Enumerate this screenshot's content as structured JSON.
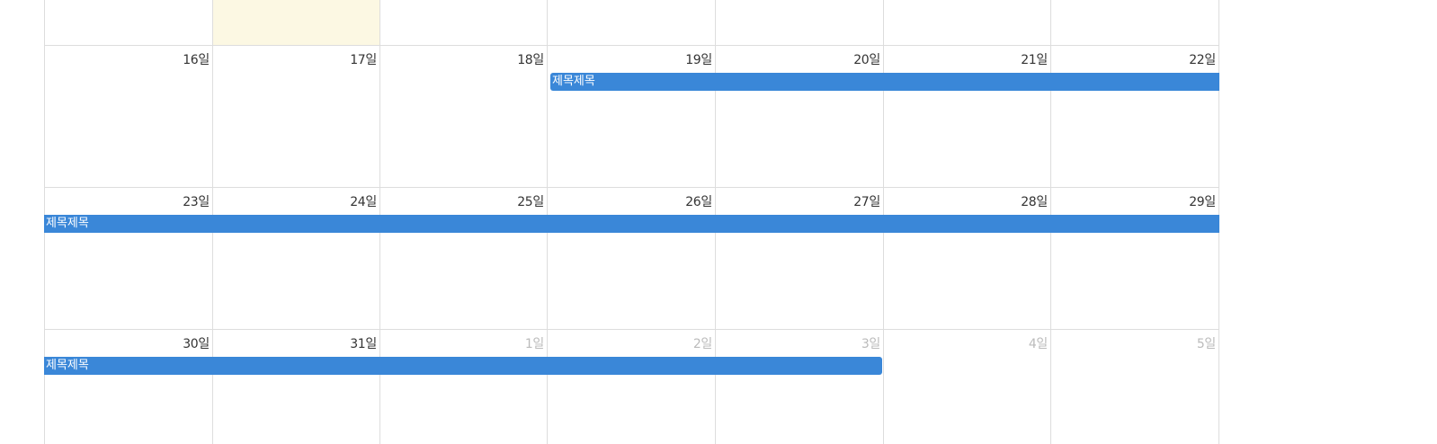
{
  "calendar": {
    "colors": {
      "grid": "#dddddd",
      "today_bg": "#fcf8e3",
      "event_bg": "#3a87d8",
      "other_month_text": "#bbbbbb"
    },
    "weeks": [
      {
        "days": [
          {
            "label": ""
          },
          {
            "label": ""
          },
          {
            "label": ""
          },
          {
            "label": ""
          },
          {
            "label": ""
          },
          {
            "label": ""
          },
          {
            "label": ""
          }
        ]
      },
      {
        "days": [
          {
            "label": "16일"
          },
          {
            "label": "17일"
          },
          {
            "label": "18일"
          },
          {
            "label": "19일"
          },
          {
            "label": "20일"
          },
          {
            "label": "21일"
          },
          {
            "label": "22일"
          }
        ]
      },
      {
        "days": [
          {
            "label": "23일"
          },
          {
            "label": "24일"
          },
          {
            "label": "25일"
          },
          {
            "label": "26일"
          },
          {
            "label": "27일"
          },
          {
            "label": "28일"
          },
          {
            "label": "29일"
          }
        ]
      },
      {
        "days": [
          {
            "label": "30일"
          },
          {
            "label": "31일"
          },
          {
            "label": "1일"
          },
          {
            "label": "2일"
          },
          {
            "label": "3일"
          },
          {
            "label": "4일"
          },
          {
            "label": "5일"
          }
        ]
      }
    ],
    "events": [
      {
        "title": "제목제목",
        "week": 1,
        "start_day": 3,
        "end_day": 6,
        "starts_here": true,
        "ends_here": false
      },
      {
        "title": "제목제목",
        "week": 2,
        "start_day": 0,
        "end_day": 6,
        "starts_here": false,
        "ends_here": false
      },
      {
        "title": "제목제목",
        "week": 3,
        "start_day": 0,
        "end_day": 4,
        "starts_here": false,
        "ends_here": true
      }
    ]
  }
}
